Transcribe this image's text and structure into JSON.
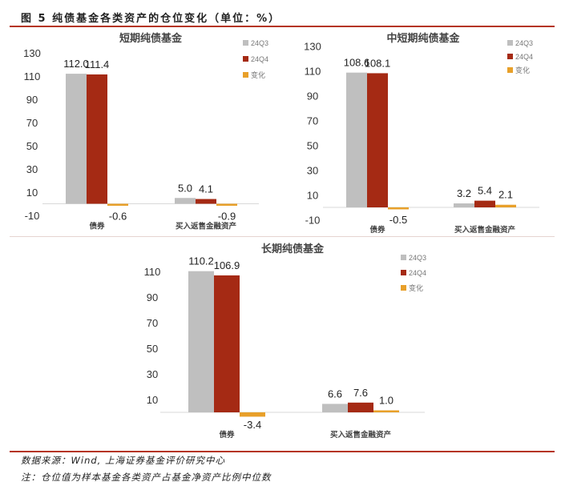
{
  "figure_title": "图 5 纯债基金各类资产的仓位变化（单位：%）",
  "source": "数据来源：Wind, 上海证券基金评价研究中心",
  "note": "注：仓位值为样本基金各类资产占基金净资产比例中位数",
  "colors": {
    "24Q3": "#bfbfbf",
    "24Q4": "#a52a14",
    "变化": "#e8a02a",
    "rule": "#b5341f"
  },
  "chart_data": [
    {
      "type": "bar",
      "title": "短期纯债基金",
      "categories": [
        "债券",
        "买入返售金融资产"
      ],
      "series": [
        {
          "name": "24Q3",
          "values": [
            112.0,
            5.0
          ]
        },
        {
          "name": "24Q4",
          "values": [
            111.4,
            4.1
          ]
        },
        {
          "name": "变化",
          "values": [
            -0.6,
            -0.9
          ]
        }
      ],
      "yticks": [
        130,
        110,
        90,
        70,
        50,
        30,
        10,
        -10
      ],
      "legend": "top-right"
    },
    {
      "type": "bar",
      "title": "中短期纯债基金",
      "categories": [
        "债券",
        "买入返售金融资产"
      ],
      "series": [
        {
          "name": "24Q3",
          "values": [
            108.6,
            3.2
          ]
        },
        {
          "name": "24Q4",
          "values": [
            108.1,
            5.4
          ]
        },
        {
          "name": "变化",
          "values": [
            -0.5,
            2.1
          ]
        }
      ],
      "yticks": [
        130,
        110,
        90,
        70,
        50,
        30,
        10,
        -10
      ],
      "legend": "top-right"
    },
    {
      "type": "bar",
      "title": "长期纯债基金",
      "categories": [
        "债券",
        "买入返售金融资产"
      ],
      "series": [
        {
          "name": "24Q3",
          "values": [
            110.2,
            6.6
          ]
        },
        {
          "name": "24Q4",
          "values": [
            106.9,
            7.6
          ]
        },
        {
          "name": "变化",
          "values": [
            -3.4,
            1.0
          ]
        }
      ],
      "yticks": [
        110,
        90,
        70,
        50,
        30,
        10
      ],
      "legend": "top-right"
    }
  ]
}
